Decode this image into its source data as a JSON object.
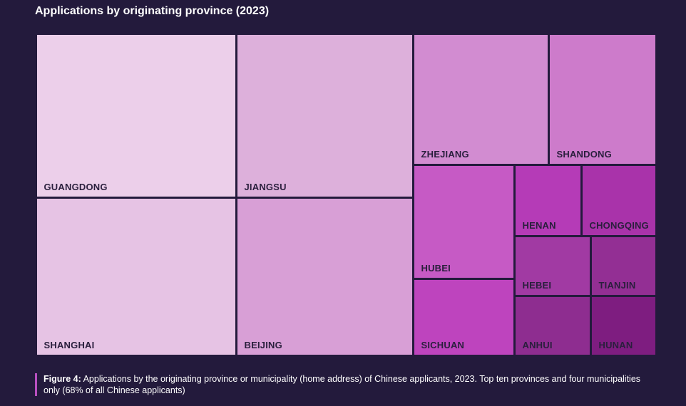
{
  "chart_data": {
    "type": "treemap",
    "title": "Applications by originating province (2023)",
    "nodes": [
      {
        "name": "GUANGDONG",
        "color": "#eccfea"
      },
      {
        "name": "SHANGHAI",
        "color": "#e6c3e4"
      },
      {
        "name": "JIANGSU",
        "color": "#ddb0db"
      },
      {
        "name": "BEIJING",
        "color": "#d89fd6"
      },
      {
        "name": "ZHEJIANG",
        "color": "#d28cd1"
      },
      {
        "name": "SHANDONG",
        "color": "#cd7bcb"
      },
      {
        "name": "HUBEI",
        "color": "#c65ac5"
      },
      {
        "name": "SICHUAN",
        "color": "#be44be"
      },
      {
        "name": "HENAN",
        "color": "#b53bb7"
      },
      {
        "name": "CHONGQING",
        "color": "#a933aa"
      },
      {
        "name": "HEBEI",
        "color": "#a13aa3"
      },
      {
        "name": "TIANJIN",
        "color": "#932f94"
      },
      {
        "name": "ANHUI",
        "color": "#8e2d90"
      },
      {
        "name": "HUNAN",
        "color": "#7e1d80"
      }
    ]
  },
  "caption": {
    "label": "Figure 4:",
    "text": " Applications by the originating province or municipality (home address) of Chinese applicants, 2023. Top ten provinces and four municipalities only (68% of all Chinese applicants)"
  },
  "colors": {
    "background": "#231a3c",
    "caption_accent": "#b84fc0",
    "label_text": "#2a1f3d"
  }
}
